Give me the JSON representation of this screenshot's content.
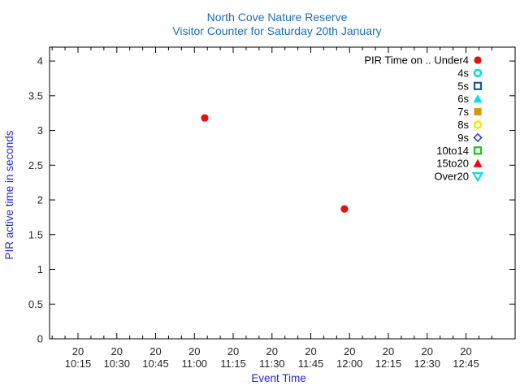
{
  "colors": {
    "title": "#1b6eb8",
    "axis_label": "#2727cc",
    "tick_label": "#262626",
    "axis_line": "#000000",
    "background": "#ffffff",
    "legend_text": "#000000"
  },
  "chart_data": {
    "type": "scatter",
    "title": "North Cove Nature Reserve",
    "subtitle": "Visitor Counter for Saturday 20th January",
    "xlabel": "Event Time",
    "ylabel": "PIR active time in seconds",
    "legend_position": "top-right-inside",
    "grid": false,
    "x_axis": {
      "day_label": "20",
      "tick_times": [
        "10:15",
        "10:30",
        "10:45",
        "11:00",
        "11:15",
        "11:30",
        "11:45",
        "12:00",
        "12:15",
        "12:30",
        "12:45"
      ],
      "minor_tick_interval_minutes": 5,
      "range_start": "10:04",
      "range_end": "13:04"
    },
    "y_axis": {
      "tick_labels": [
        "0",
        "0.5",
        "1",
        "1.5",
        "2",
        "2.5",
        "3",
        "3.5",
        "4"
      ],
      "range": [
        0,
        4.2
      ]
    },
    "series": [
      {
        "name": "PIR Time on .. Under4",
        "marker": "circle-filled",
        "color": "#e3120b",
        "points": [
          {
            "time": "11:04",
            "seconds": 3.18
          },
          {
            "time": "11:58",
            "seconds": 1.87
          }
        ]
      },
      {
        "name": "4s",
        "marker": "circle-open",
        "color": "#00e0e0",
        "points": []
      },
      {
        "name": "5s",
        "marker": "square-open",
        "color": "#1558a8",
        "points": []
      },
      {
        "name": "6s",
        "marker": "triangle-up-filled",
        "color": "#00e0e0",
        "points": []
      },
      {
        "name": "7s",
        "marker": "square-filled",
        "color": "#de9500",
        "points": []
      },
      {
        "name": "8s",
        "marker": "circle-open",
        "color": "#ffe600",
        "points": []
      },
      {
        "name": "9s",
        "marker": "diamond-open",
        "color": "#2244dd",
        "points": []
      },
      {
        "name": "10to14",
        "marker": "square-open",
        "color": "#1fbf1f",
        "points": []
      },
      {
        "name": "15to20",
        "marker": "triangle-up-filled",
        "color": "#ff0000",
        "points": []
      },
      {
        "name": "Over20",
        "marker": "triangle-down-open",
        "color": "#00e0e0",
        "points": []
      }
    ]
  }
}
